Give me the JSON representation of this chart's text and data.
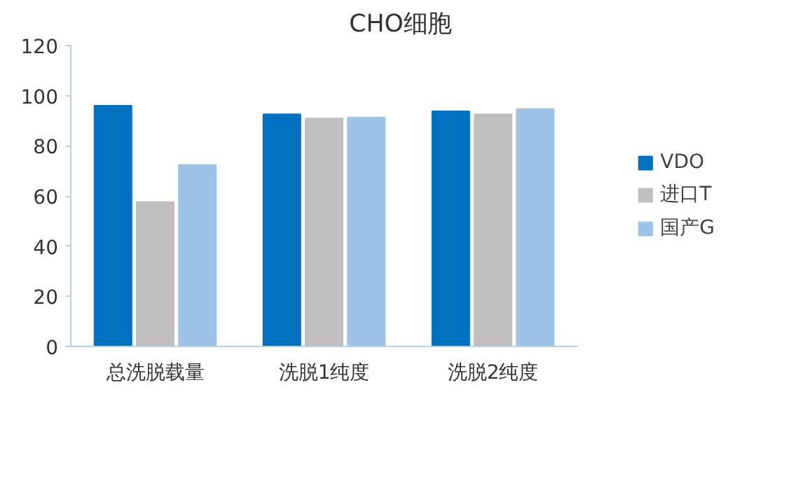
{
  "chart_data": {
    "type": "bar",
    "title": "CHO细胞",
    "categories": [
      "总洗脱载量",
      "洗脱1纯度",
      "洗脱2纯度"
    ],
    "series": [
      {
        "name": "VDO",
        "color": "#0070c0",
        "values": [
          96,
          92.6,
          93.8
        ]
      },
      {
        "name": "进口T",
        "color": "#bfbfbf",
        "values": [
          57.6,
          90.9,
          92.6
        ]
      },
      {
        "name": "国产G",
        "color": "#9dc3e6",
        "values": [
          72.4,
          91.3,
          94.7
        ]
      }
    ],
    "ylim": [
      0,
      120
    ],
    "yticks": [
      0,
      20,
      40,
      60,
      80,
      100,
      120
    ],
    "grid": false,
    "legend": "right"
  }
}
